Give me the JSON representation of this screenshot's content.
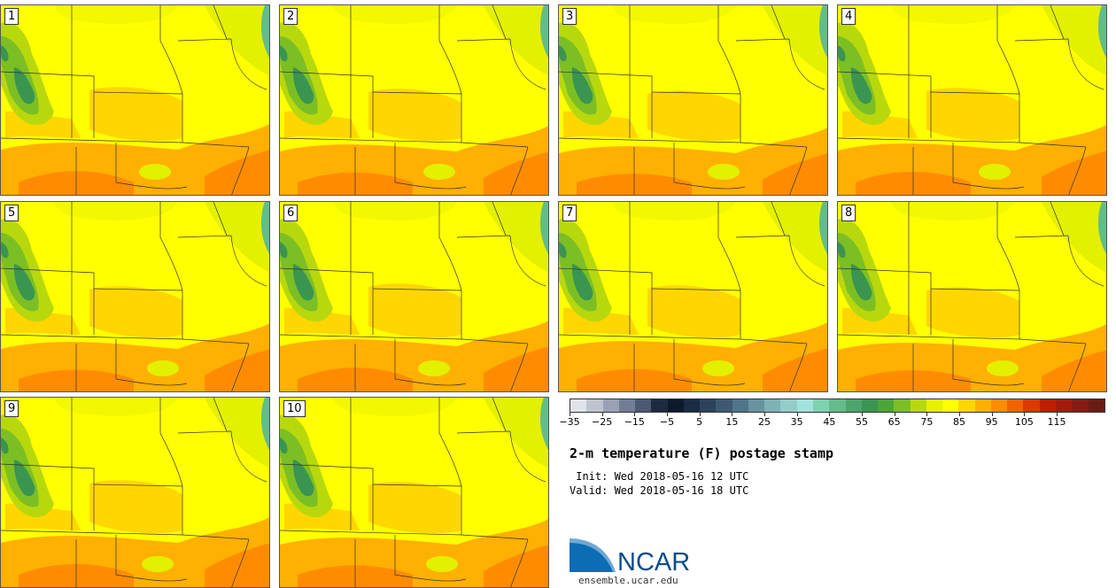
{
  "members": [
    {
      "label": "1"
    },
    {
      "label": "2"
    },
    {
      "label": "3"
    },
    {
      "label": "4"
    },
    {
      "label": "5"
    },
    {
      "label": "6"
    },
    {
      "label": "7"
    },
    {
      "label": "8"
    },
    {
      "label": "9"
    },
    {
      "label": "10"
    }
  ],
  "colorbar": {
    "colors": [
      "#e1e3ea",
      "#bfc3ce",
      "#9aa1b4",
      "#727c95",
      "#4d5872",
      "#1d2a40",
      "#0d1a2c",
      "#1a2c44",
      "#2b435c",
      "#3c5a73",
      "#4e7589",
      "#67939f",
      "#7fb2b5",
      "#93cdc9",
      "#9fe3dc",
      "#7dd3b0",
      "#62bd8a",
      "#4aa66c",
      "#3a9550",
      "#4aa636",
      "#7cbf24",
      "#b8d80e",
      "#e8f000",
      "#ffff00",
      "#ffd600",
      "#ffb000",
      "#ff8c00",
      "#f06400",
      "#d93a00",
      "#bf1e00",
      "#a41a0c",
      "#851d12",
      "#6a1c14"
    ],
    "tick_labels": [
      "-35",
      "-25",
      "-15",
      "-5",
      "5",
      "15",
      "25",
      "35",
      "45",
      "55",
      "65",
      "75",
      "85",
      "95",
      "105",
      "115"
    ]
  },
  "title": "2-m temperature (F) postage stamp",
  "init_text": " Init: Wed 2018-05-16 12 UTC",
  "valid_text": "Valid: Wed 2018-05-16 18 UTC",
  "logo_text": "NCAR",
  "url": "ensemble.ucar.edu"
}
